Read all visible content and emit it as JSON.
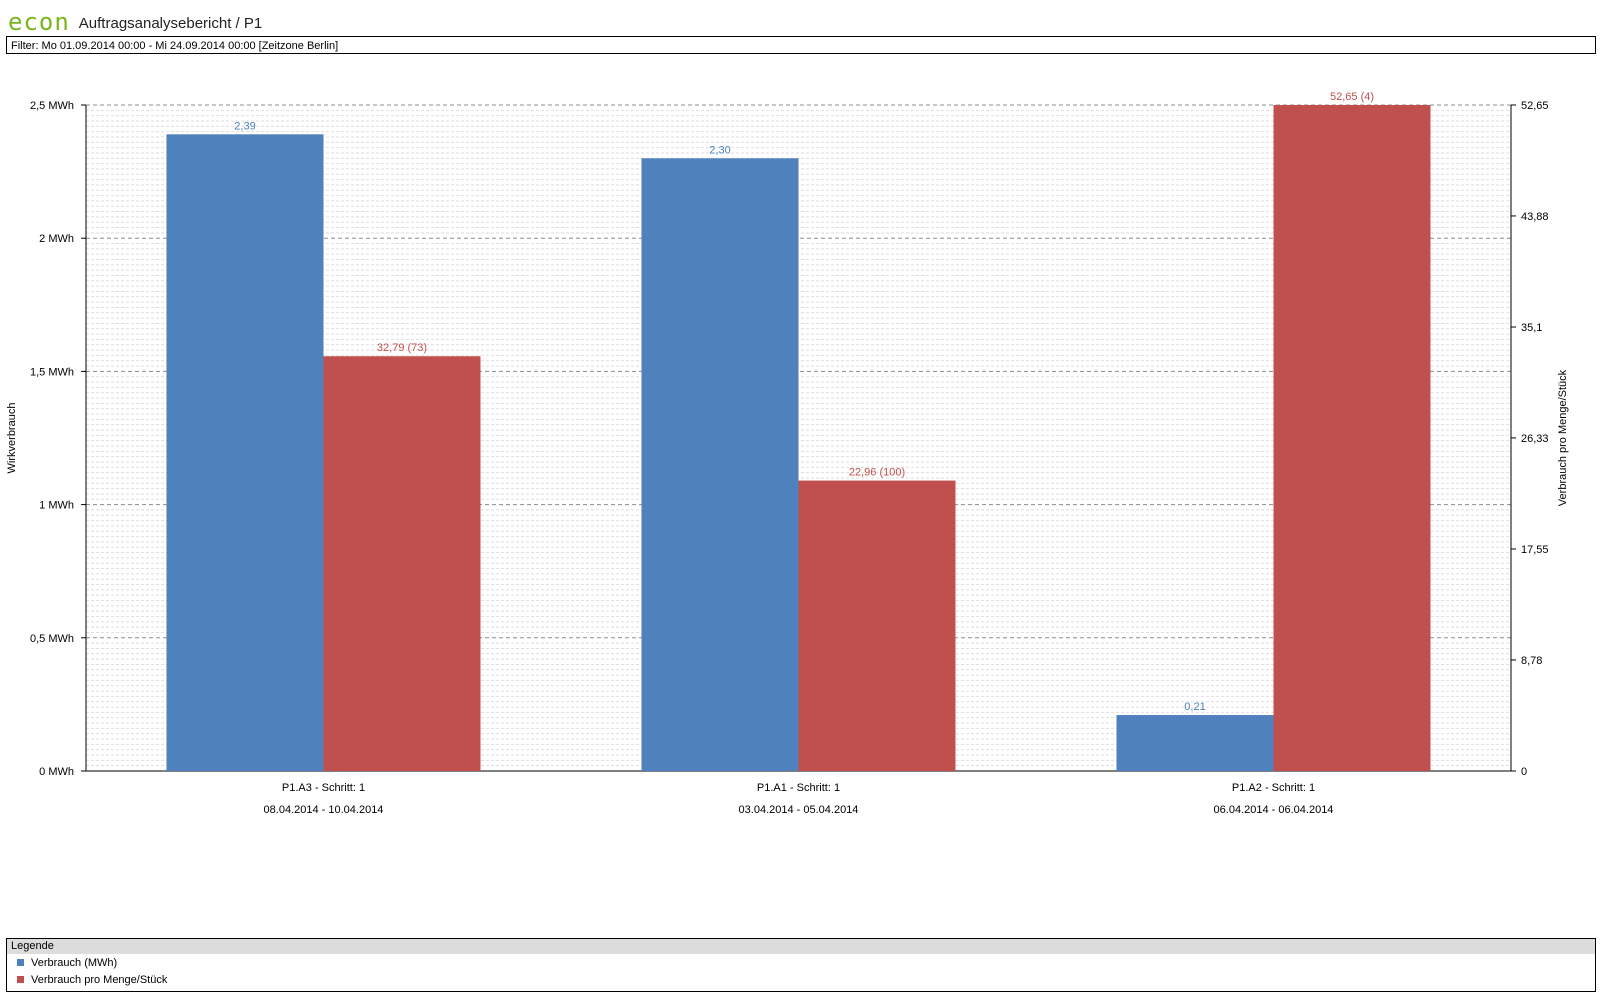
{
  "header": {
    "logo_text": "econ",
    "title": "Auftragsanalysebericht / P1"
  },
  "filter": {
    "text": "Filter: Mo 01.09.2014 00:00 - Mi 24.09.2014 00:00 [Zeitzone Berlin]"
  },
  "colors": {
    "series1": "#4f81bd",
    "series2": "#c0504d",
    "logo": "#7ab51d"
  },
  "chart_data": {
    "type": "bar",
    "title": "",
    "ylabel": "Wirkverbrauch",
    "y2label": "Verbrauch pro Menge/Stück",
    "ylim": [
      0,
      2.5
    ],
    "y2lim": [
      0,
      52.65
    ],
    "yticks": [
      {
        "value": 0,
        "label": "0 MWh"
      },
      {
        "value": 0.5,
        "label": "0,5 MWh"
      },
      {
        "value": 1,
        "label": "1 MWh"
      },
      {
        "value": 1.5,
        "label": "1,5 MWh"
      },
      {
        "value": 2,
        "label": "2 MWh"
      },
      {
        "value": 2.5,
        "label": "2,5 MWh"
      }
    ],
    "y2ticks": [
      {
        "value": 0,
        "label": "0"
      },
      {
        "value": 8.78,
        "label": "8,78"
      },
      {
        "value": 17.55,
        "label": "17,55"
      },
      {
        "value": 26.33,
        "label": "26,33"
      },
      {
        "value": 35.1,
        "label": "35,1"
      },
      {
        "value": 43.88,
        "label": "43,88"
      },
      {
        "value": 52.65,
        "label": "52,65"
      }
    ],
    "categories": [
      {
        "name": "P1.A3 - Schritt: 1",
        "range": "08.04.2014 - 10.04.2014"
      },
      {
        "name": "P1.A1 - Schritt: 1",
        "range": "03.04.2014 - 05.04.2014"
      },
      {
        "name": "P1.A2 - Schritt: 1",
        "range": "06.04.2014 - 06.04.2014"
      }
    ],
    "series": [
      {
        "name": "Verbrauch (MWh)",
        "axis": "left",
        "values": [
          2.39,
          2.3,
          0.21
        ],
        "labels": [
          "2,39",
          "2,30",
          "0,21"
        ]
      },
      {
        "name": "Verbrauch pro Menge/Stück",
        "axis": "right",
        "values": [
          32.79,
          22.96,
          52.65
        ],
        "labels": [
          "32,79 (73)",
          "22,96 (100)",
          "52,65 (4)"
        ]
      }
    ],
    "grid": true,
    "legend": "bottom"
  },
  "legend": {
    "title": "Legende",
    "items": [
      {
        "label": "Verbrauch (MWh)"
      },
      {
        "label": "Verbrauch pro Menge/Stück"
      }
    ]
  }
}
